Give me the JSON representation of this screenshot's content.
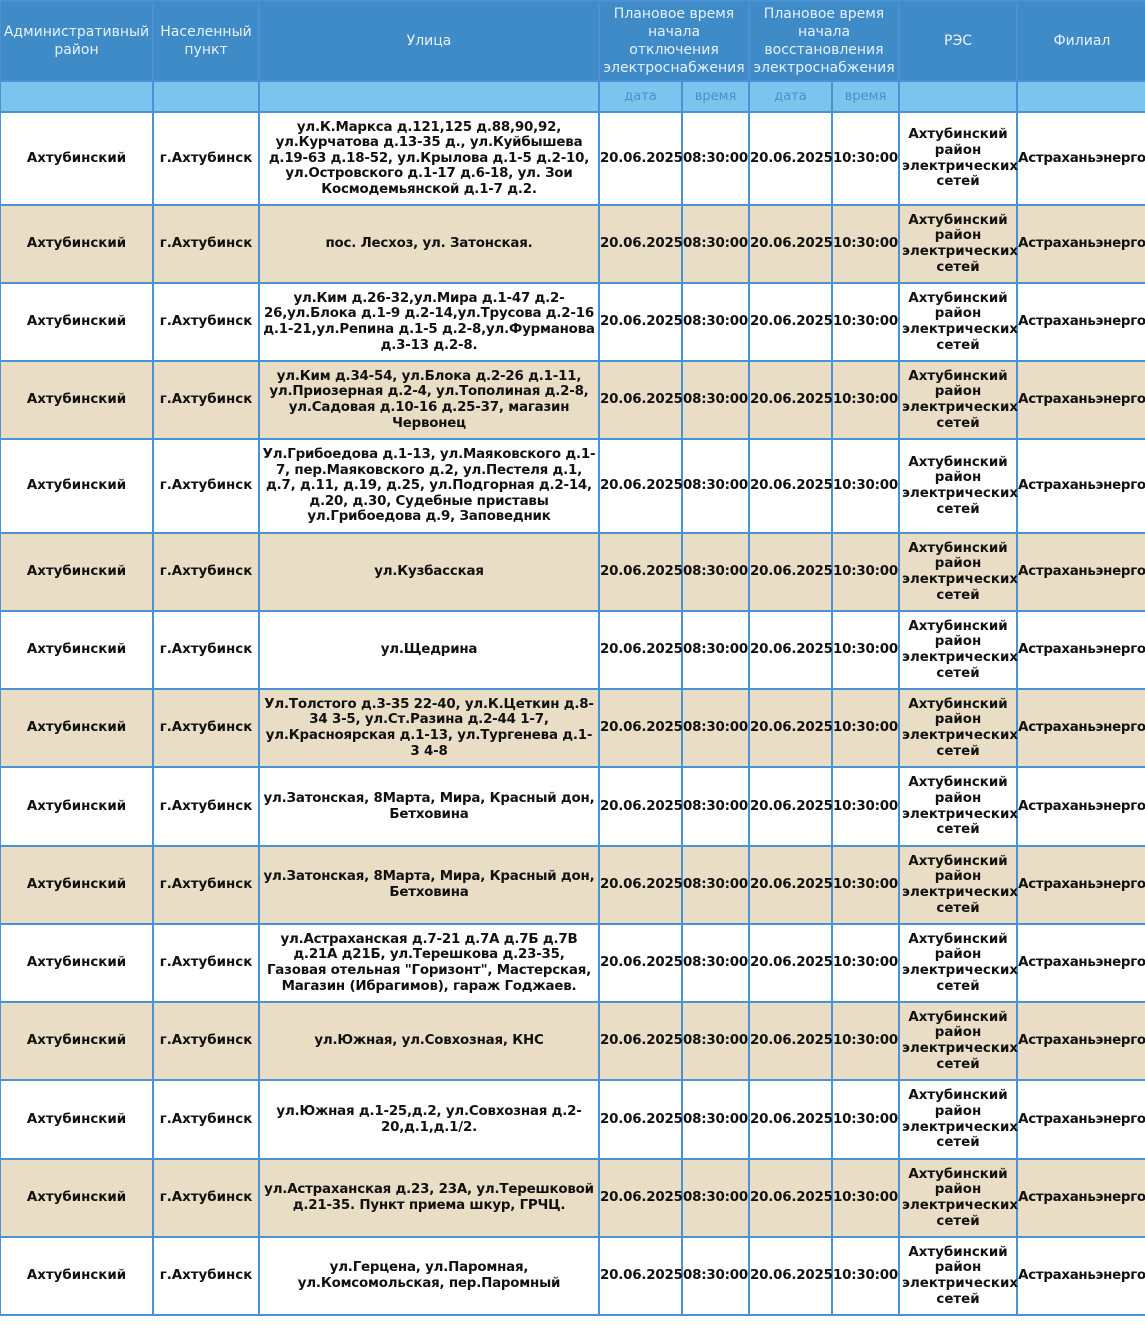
{
  "header": {
    "district": "Административный район",
    "settlement": "Населенный пункт",
    "street": "Улица",
    "off_start": "Плановое время начала отключения электроснабжения",
    "restore_start": "Плановое время начала восстановления электроснабжения",
    "res": "РЭС",
    "branch": "Филиал",
    "date_label": "дата",
    "time_label": "время"
  },
  "rows": [
    {
      "district": "Ахтубинский",
      "settlement": "г.Ахтубинск",
      "street": "ул.К.Маркса д.121,125 д.88,90,92, ул.Курчатова д.13-35 д., ул.Куйбышева д.19-63 д.18-52, ул.Крылова д.1-5 д.2-10, ул.Островского д.1-17 д.6-18, ул. Зои Космодемьянской д.1-7 д.2.",
      "off_date": "20.06.2025",
      "off_time": "08:30:00",
      "on_date": "20.06.2025",
      "on_time": "10:30:00",
      "res": "Ахтубинский район электрических сетей",
      "branch": "Астраханьэнерго"
    },
    {
      "district": "Ахтубинский",
      "settlement": "г.Ахтубинск",
      "street": "пос. Лесхоз, ул. Затонская.",
      "off_date": "20.06.2025",
      "off_time": "08:30:00",
      "on_date": "20.06.2025",
      "on_time": "10:30:00",
      "res": "Ахтубинский район электрических сетей",
      "branch": "Астраханьэнерго"
    },
    {
      "district": "Ахтубинский",
      "settlement": "г.Ахтубинск",
      "street": "ул.Ким д.26-32,ул.Мира д.1-47 д.2-26,ул.Блока д.1-9 д.2-14,ул.Трусова д.2-16 д.1-21,ул.Репина д.1-5 д.2-8,ул.Фурманова д.3-13 д.2-8.",
      "off_date": "20.06.2025",
      "off_time": "08:30:00",
      "on_date": "20.06.2025",
      "on_time": "10:30:00",
      "res": "Ахтубинский район электрических сетей",
      "branch": "Астраханьэнерго"
    },
    {
      "district": "Ахтубинский",
      "settlement": "г.Ахтубинск",
      "street": "ул.Ким д.34-54, ул.Блока д.2-26 д.1-11, ул.Приозерная д.2-4, ул.Тополиная д.2-8, ул.Садовая д.10-16 д.25-37, магазин Червонец",
      "off_date": "20.06.2025",
      "off_time": "08:30:00",
      "on_date": "20.06.2025",
      "on_time": "10:30:00",
      "res": "Ахтубинский район электрических сетей",
      "branch": "Астраханьэнерго"
    },
    {
      "district": "Ахтубинский",
      "settlement": "г.Ахтубинск",
      "street": "Ул.Грибоедова д.1-13, ул.Маяковского д.1-7, пер.Маяковского д.2, ул.Пестеля д.1, д.7, д.11, д.19, д.25, ул.Подгорная д.2-14, д.20, д.30, Судебные приставы ул.Грибоедова д.9, Заповедник",
      "off_date": "20.06.2025",
      "off_time": "08:30:00",
      "on_date": "20.06.2025",
      "on_time": "10:30:00",
      "res": "Ахтубинский район электрических сетей",
      "branch": "Астраханьэнерго"
    },
    {
      "district": "Ахтубинский",
      "settlement": "г.Ахтубинск",
      "street": "ул.Кузбасская",
      "off_date": "20.06.2025",
      "off_time": "08:30:00",
      "on_date": "20.06.2025",
      "on_time": "10:30:00",
      "res": "Ахтубинский район электрических сетей",
      "branch": "Астраханьэнерго"
    },
    {
      "district": "Ахтубинский",
      "settlement": "г.Ахтубинск",
      "street": "ул.Щедрина",
      "off_date": "20.06.2025",
      "off_time": "08:30:00",
      "on_date": "20.06.2025",
      "on_time": "10:30:00",
      "res": "Ахтубинский район электрических сетей",
      "branch": "Астраханьэнерго"
    },
    {
      "district": "Ахтубинский",
      "settlement": "г.Ахтубинск",
      "street": "Ул.Толстого д.3-35 22-40, ул.К.Цеткин д.8-34 3-5, ул.Ст.Разина д.2-44 1-7, ул.Красноярская д.1-13, ул.Тургенева д.1-3 4-8",
      "off_date": "20.06.2025",
      "off_time": "08:30:00",
      "on_date": "20.06.2025",
      "on_time": "10:30:00",
      "res": "Ахтубинский район электрических сетей",
      "branch": "Астраханьэнерго"
    },
    {
      "district": "Ахтубинский",
      "settlement": "г.Ахтубинск",
      "street": "ул.Затонская, 8Марта, Мира, Красный дон, Бетховина",
      "off_date": "20.06.2025",
      "off_time": "08:30:00",
      "on_date": "20.06.2025",
      "on_time": "10:30:00",
      "res": "Ахтубинский район электрических сетей",
      "branch": "Астраханьэнерго"
    },
    {
      "district": "Ахтубинский",
      "settlement": "г.Ахтубинск",
      "street": "ул.Затонская, 8Марта, Мира, Красный дон, Бетховина",
      "off_date": "20.06.2025",
      "off_time": "08:30:00",
      "on_date": "20.06.2025",
      "on_time": "10:30:00",
      "res": "Ахтубинский район электрических сетей",
      "branch": "Астраханьэнерго"
    },
    {
      "district": "Ахтубинский",
      "settlement": "г.Ахтубинск",
      "street": "ул.Астраханская д.7-21 д.7А д.7Б д.7В д.21А д21Б, ул.Терешкова д.23-35, Газовая отельная \"Горизонт\", Мастерская, Магазин (Ибрагимов), гараж Годжаев.",
      "off_date": "20.06.2025",
      "off_time": "08:30:00",
      "on_date": "20.06.2025",
      "on_time": "10:30:00",
      "res": "Ахтубинский район электрических сетей",
      "branch": "Астраханьэнерго"
    },
    {
      "district": "Ахтубинский",
      "settlement": "г.Ахтубинск",
      "street": "ул.Южная, ул.Совхозная, КНС",
      "off_date": "20.06.2025",
      "off_time": "08:30:00",
      "on_date": "20.06.2025",
      "on_time": "10:30:00",
      "res": "Ахтубинский район электрических сетей",
      "branch": "Астраханьэнерго"
    },
    {
      "district": "Ахтубинский",
      "settlement": "г.Ахтубинск",
      "street": "ул.Южная д.1-25,д.2, ул.Совхозная д.2-20,д.1,д.1/2.",
      "off_date": "20.06.2025",
      "off_time": "08:30:00",
      "on_date": "20.06.2025",
      "on_time": "10:30:00",
      "res": "Ахтубинский район электрических сетей",
      "branch": "Астраханьэнерго"
    },
    {
      "district": "Ахтубинский",
      "settlement": "г.Ахтубинск",
      "street": "ул.Астраханская д.23, 23А, ул.Терешковой д.21-35. Пункт приема шкур, ГРЧЦ.",
      "off_date": "20.06.2025",
      "off_time": "08:30:00",
      "on_date": "20.06.2025",
      "on_time": "10:30:00",
      "res": "Ахтубинский район электрических сетей",
      "branch": "Астраханьэнерго"
    },
    {
      "district": "Ахтубинский",
      "settlement": "г.Ахтубинск",
      "street": "ул.Герцена, ул.Паромная, ул.Комсомольская, пер.Паромный",
      "off_date": "20.06.2025",
      "off_time": "08:30:00",
      "on_date": "20.06.2025",
      "on_time": "10:30:00",
      "res": "Ахтубинский район электрических сетей",
      "branch": "Астраханьэнерго"
    }
  ],
  "colors": {
    "header_bg": "#3e8bc7",
    "subheader_bg": "#7cc4ee",
    "alt_row_bg": "#e9dec5",
    "border": "#4a92d3"
  }
}
